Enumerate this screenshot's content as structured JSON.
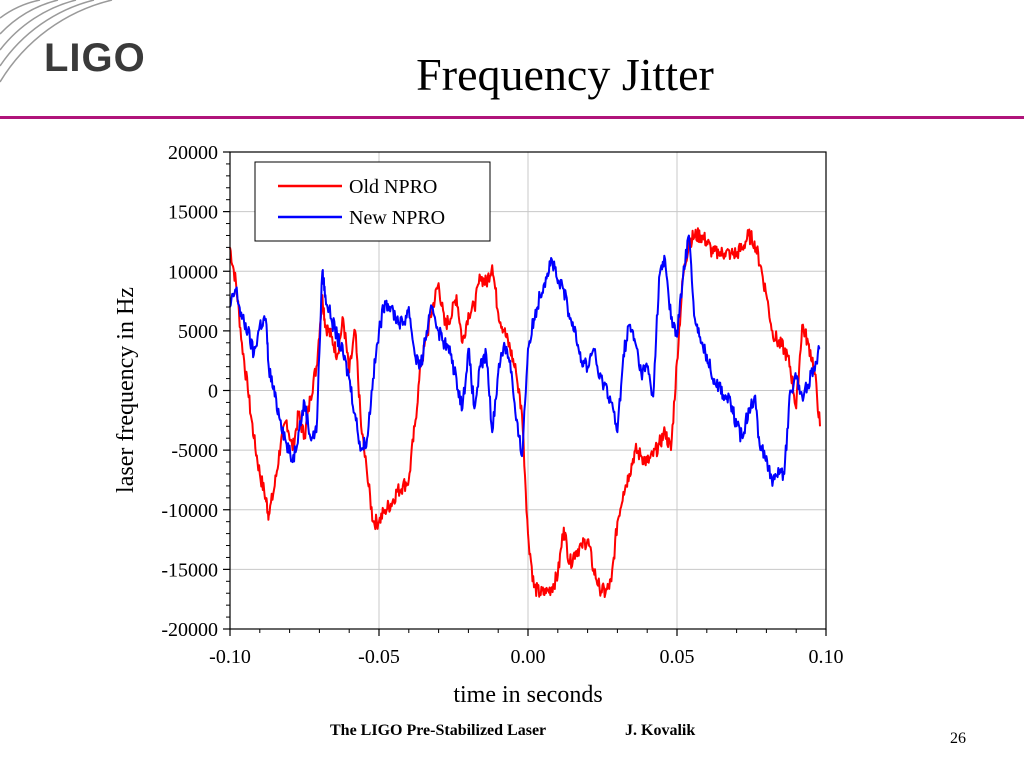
{
  "slide": {
    "logo": "LIGO",
    "title": "Frequency Jitter",
    "footer_left": "The LIGO Pre-Stabilized Laser",
    "footer_author": "J. Kovalik",
    "page_number": "26",
    "accent_color": "#b0147a"
  },
  "chart_data": {
    "type": "line",
    "xlabel": "time in seconds",
    "ylabel": "laser frequency in Hz",
    "xlim": [
      -0.1,
      0.1
    ],
    "ylim": [
      -20000,
      20000
    ],
    "xticks": [
      -0.1,
      -0.05,
      0.0,
      0.05,
      0.1
    ],
    "xtick_labels": [
      "-0.10",
      "-0.05",
      "0.00",
      "0.05",
      "0.10"
    ],
    "yticks": [
      -20000,
      -15000,
      -10000,
      -5000,
      0,
      5000,
      10000,
      15000,
      20000
    ],
    "ytick_labels": [
      "-20000",
      "-15000",
      "-10000",
      "-5000",
      "0",
      "5000",
      "10000",
      "15000",
      "20000"
    ],
    "grid": true,
    "legend_position": "top-left",
    "series": [
      {
        "name": "Old NPRO",
        "color": "#ff0000",
        "x": [
          -0.1,
          -0.098,
          -0.096,
          -0.094,
          -0.092,
          -0.09,
          -0.088,
          -0.087,
          -0.085,
          -0.083,
          -0.081,
          -0.079,
          -0.077,
          -0.075,
          -0.073,
          -0.071,
          -0.069,
          -0.068,
          -0.066,
          -0.064,
          -0.062,
          -0.06,
          -0.058,
          -0.056,
          -0.054,
          -0.052,
          -0.05,
          -0.048,
          -0.046,
          -0.044,
          -0.042,
          -0.04,
          -0.038,
          -0.036,
          -0.034,
          -0.032,
          -0.03,
          -0.028,
          -0.026,
          -0.024,
          -0.022,
          -0.02,
          -0.018,
          -0.016,
          -0.014,
          -0.012,
          -0.01,
          -0.008,
          -0.006,
          -0.004,
          -0.002,
          0.0,
          0.002,
          0.004,
          0.006,
          0.008,
          0.01,
          0.012,
          0.014,
          0.016,
          0.018,
          0.02,
          0.022,
          0.024,
          0.026,
          0.028,
          0.03,
          0.032,
          0.034,
          0.036,
          0.038,
          0.04,
          0.042,
          0.044,
          0.046,
          0.048,
          0.05,
          0.052,
          0.054,
          0.056,
          0.058,
          0.06,
          0.062,
          0.064,
          0.066,
          0.068,
          0.07,
          0.072,
          0.074,
          0.076,
          0.078,
          0.08,
          0.082,
          0.084,
          0.086,
          0.088,
          0.09,
          0.092,
          0.094,
          0.096,
          0.098
        ],
        "y": [
          12000,
          9000,
          4000,
          0,
          -4000,
          -7000,
          -9000,
          -10500,
          -8000,
          -4500,
          -2500,
          -5000,
          -2000,
          -4000,
          -500,
          2000,
          8000,
          5500,
          4500,
          3000,
          6000,
          1500,
          5000,
          -3000,
          -7000,
          -11000,
          -11000,
          -10000,
          -9500,
          -8500,
          -8000,
          -7500,
          -3000,
          2000,
          4500,
          7000,
          9000,
          5500,
          6000,
          8000,
          4000,
          6500,
          7000,
          9500,
          9000,
          10500,
          6500,
          5000,
          3500,
          1500,
          -2000,
          -12000,
          -16500,
          -17000,
          -17000,
          -16500,
          -15500,
          -11500,
          -14500,
          -13500,
          -13000,
          -12500,
          -15000,
          -16500,
          -17000,
          -16000,
          -11000,
          -8500,
          -7000,
          -5000,
          -5500,
          -6000,
          -5500,
          -4500,
          -3500,
          -5000,
          2500,
          9500,
          12500,
          13000,
          13000,
          12500,
          11500,
          11500,
          11500,
          11500,
          11500,
          12000,
          13000,
          12500,
          10500,
          8000,
          5000,
          4000,
          3500,
          2000,
          -1500,
          5500,
          4000,
          2000,
          -3000
        ]
      },
      {
        "name": "New NPRO",
        "color": "#0000ff",
        "x": [
          -0.1,
          -0.098,
          -0.096,
          -0.094,
          -0.092,
          -0.09,
          -0.088,
          -0.087,
          -0.085,
          -0.083,
          -0.081,
          -0.079,
          -0.077,
          -0.075,
          -0.073,
          -0.071,
          -0.069,
          -0.068,
          -0.066,
          -0.064,
          -0.062,
          -0.06,
          -0.058,
          -0.056,
          -0.054,
          -0.052,
          -0.05,
          -0.048,
          -0.046,
          -0.044,
          -0.042,
          -0.04,
          -0.038,
          -0.036,
          -0.034,
          -0.032,
          -0.03,
          -0.028,
          -0.026,
          -0.024,
          -0.022,
          -0.02,
          -0.018,
          -0.016,
          -0.014,
          -0.012,
          -0.01,
          -0.008,
          -0.006,
          -0.004,
          -0.002,
          0.0,
          0.002,
          0.004,
          0.006,
          0.008,
          0.01,
          0.012,
          0.014,
          0.016,
          0.018,
          0.02,
          0.022,
          0.024,
          0.026,
          0.028,
          0.03,
          0.032,
          0.034,
          0.036,
          0.038,
          0.04,
          0.042,
          0.044,
          0.046,
          0.048,
          0.05,
          0.052,
          0.054,
          0.056,
          0.058,
          0.06,
          0.062,
          0.064,
          0.066,
          0.068,
          0.07,
          0.072,
          0.074,
          0.076,
          0.078,
          0.08,
          0.082,
          0.084,
          0.086,
          0.088,
          0.09,
          0.092,
          0.094,
          0.096,
          0.098
        ],
        "y": [
          7000,
          8500,
          6000,
          5000,
          3000,
          5500,
          6000,
          2000,
          -500,
          -2500,
          -4500,
          -6000,
          -3500,
          -1000,
          -4000,
          -3500,
          10000,
          8000,
          6000,
          4500,
          3000,
          1000,
          -2000,
          -5000,
          -4000,
          1000,
          5000,
          7500,
          7000,
          6000,
          5500,
          7000,
          3000,
          2000,
          5000,
          7000,
          5000,
          4000,
          3000,
          1000,
          -1500,
          3500,
          -1500,
          2000,
          3000,
          -3500,
          1500,
          4000,
          2500,
          -2500,
          -5500,
          3500,
          6000,
          8000,
          9500,
          11000,
          9000,
          8500,
          6000,
          5000,
          2500,
          2000,
          3500,
          1000,
          500,
          -1000,
          -3500,
          3000,
          5500,
          4000,
          1500,
          2000,
          -500,
          9500,
          11000,
          6000,
          4500,
          9500,
          13000,
          6000,
          4000,
          3000,
          1000,
          500,
          -500,
          -1000,
          -3000,
          -4000,
          -1500,
          -500,
          -5000,
          -5500,
          -8000,
          -6500,
          -7000,
          0,
          1000,
          -500,
          500,
          2000,
          3500
        ]
      }
    ]
  }
}
